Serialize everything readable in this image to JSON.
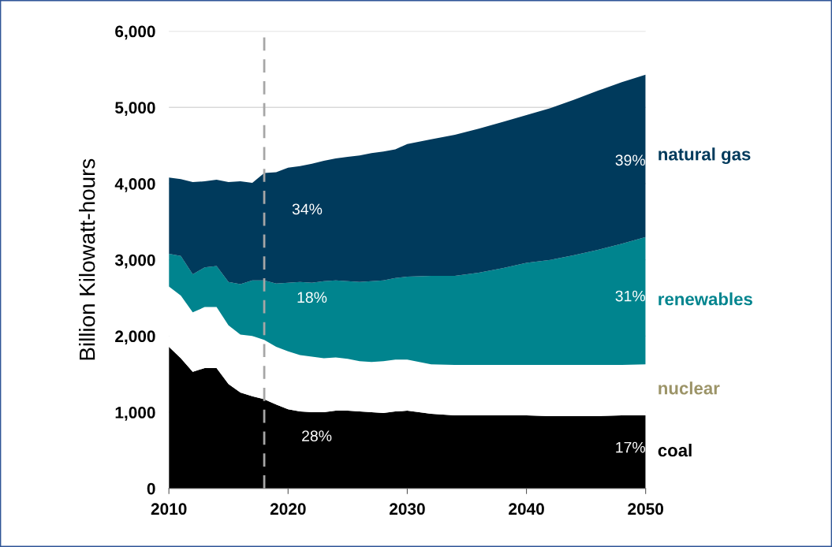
{
  "chart_data": {
    "type": "area",
    "stacked": true,
    "ylabel": "Billion Kilowatt-hours",
    "x": [
      2010,
      2011,
      2012,
      2013,
      2014,
      2015,
      2016,
      2017,
      2018,
      2019,
      2020,
      2021,
      2022,
      2023,
      2024,
      2025,
      2026,
      2027,
      2028,
      2029,
      2030,
      2032,
      2034,
      2036,
      2038,
      2040,
      2042,
      2044,
      2046,
      2048,
      2050
    ],
    "series": [
      {
        "name": "coal",
        "color": "#000000",
        "values": [
          1860,
          1710,
          1530,
          1580,
          1580,
          1370,
          1260,
          1210,
          1170,
          1100,
          1040,
          1010,
          1000,
          1000,
          1020,
          1020,
          1010,
          1000,
          990,
          1010,
          1020,
          980,
          960,
          960,
          960,
          960,
          950,
          950,
          950,
          960,
          960
        ]
      },
      {
        "name": "nuclear",
        "color": "#ffffff",
        "values": [
          790,
          820,
          780,
          800,
          800,
          770,
          760,
          790,
          780,
          760,
          760,
          740,
          730,
          710,
          700,
          680,
          660,
          660,
          680,
          680,
          670,
          650,
          660,
          660,
          660,
          660,
          670,
          670,
          670,
          660,
          670
        ]
      },
      {
        "name": "renewables",
        "color": "#00848e",
        "values": [
          430,
          520,
          500,
          520,
          540,
          570,
          660,
          730,
          780,
          830,
          900,
          960,
          970,
          1010,
          1010,
          1020,
          1040,
          1060,
          1060,
          1070,
          1090,
          1160,
          1170,
          1210,
          1270,
          1340,
          1380,
          1440,
          1510,
          1590,
          1670
        ]
      },
      {
        "name": "natural gas",
        "color": "#003a5c",
        "values": [
          1000,
          1010,
          1210,
          1130,
          1130,
          1310,
          1350,
          1280,
          1410,
          1460,
          1510,
          1520,
          1560,
          1580,
          1600,
          1630,
          1660,
          1680,
          1690,
          1690,
          1740,
          1790,
          1850,
          1890,
          1920,
          1940,
          1990,
          2040,
          2090,
          2120,
          2130
        ]
      }
    ],
    "annotations": [
      "34%",
      "18%",
      "28%",
      "39%",
      "31%",
      "17%"
    ],
    "xlim": [
      2010,
      2050
    ],
    "xticks": [
      2010,
      2020,
      2030,
      2040,
      2050
    ],
    "ylim": [
      0,
      6000
    ],
    "yticks": [
      {
        "value": 0,
        "label": "0"
      },
      {
        "value": 1000,
        "label": "1,000"
      },
      {
        "value": 2000,
        "label": "2,000"
      },
      {
        "value": 3000,
        "label": "3,000"
      },
      {
        "value": 4000,
        "label": "4,000"
      },
      {
        "value": 5000,
        "label": "5,000"
      },
      {
        "value": 6000,
        "label": "6,000"
      }
    ],
    "grid": "y",
    "ref_lines": [
      {
        "axis": "x",
        "value": 2018,
        "color": "#a6a6a6",
        "line_style": "dashed"
      }
    ]
  }
}
